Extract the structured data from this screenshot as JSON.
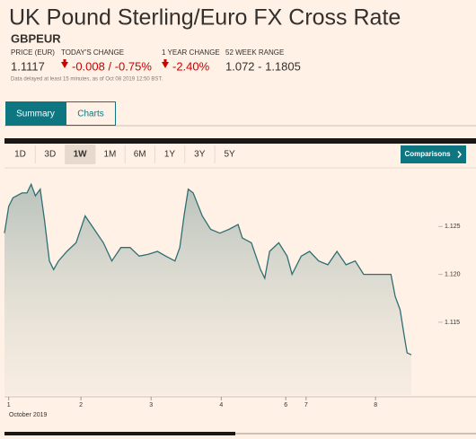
{
  "header": {
    "title": "UK Pound Sterling/Euro FX Cross Rate",
    "symbol": "GBPEUR"
  },
  "quote": {
    "labels": [
      "PRICE (EUR)",
      "TODAY'S CHANGE",
      "1 YEAR CHANGE",
      "52 WEEK RANGE"
    ],
    "values": [
      "1.1117",
      "-0.008 / -0.75%",
      "-2.40%",
      "1.072 - 1.1805"
    ],
    "note": "Data delayed at least 15 minutes, as of Oct 08 2019 12:50 BST."
  },
  "tabs": [
    "Summary",
    "Charts"
  ],
  "ranges": [
    "1D",
    "3D",
    "1W",
    "1M",
    "6M",
    "1Y",
    "3Y",
    "5Y"
  ],
  "comparisons": "Comparisons",
  "chart_data": {
    "type": "line",
    "x_label": "October 2019",
    "x": [
      -0.06,
      0,
      0.06,
      0.19,
      0.26,
      0.32,
      0.38,
      0.45,
      0.51,
      0.58,
      0.64,
      0.71,
      0.83,
      0.96,
      1.09,
      1.22,
      1.35,
      1.47,
      1.6,
      1.73,
      1.86,
      1.99,
      2.12,
      2.24,
      2.37,
      2.44,
      2.5,
      2.56,
      2.63,
      2.76,
      2.88,
      3.01,
      3.14,
      3.27,
      3.33,
      3.46,
      3.59,
      3.65,
      3.72,
      3.85,
      3.97,
      4.04,
      4.17,
      4.29,
      4.42,
      4.55,
      4.68,
      4.81,
      4.94,
      5.06,
      5.19,
      5.32,
      5.45,
      5.51,
      5.58,
      5.64,
      5.68,
      5.74
    ],
    "series": [
      {
        "name": "GBPEUR",
        "color": "#2f6f73",
        "values": [
          1.1243,
          1.1271,
          1.128,
          1.1285,
          1.1285,
          1.1294,
          1.1282,
          1.1289,
          1.1257,
          1.1214,
          1.1205,
          1.1214,
          1.1224,
          1.1233,
          1.1261,
          1.1247,
          1.1233,
          1.1214,
          1.1228,
          1.1228,
          1.1219,
          1.1221,
          1.1224,
          1.1219,
          1.1214,
          1.1228,
          1.1261,
          1.1289,
          1.1285,
          1.1261,
          1.1247,
          1.1243,
          1.1247,
          1.1252,
          1.1238,
          1.1233,
          1.1205,
          1.1196,
          1.1224,
          1.1233,
          1.1219,
          1.12,
          1.1219,
          1.1224,
          1.1214,
          1.121,
          1.1224,
          1.121,
          1.1214,
          1.12,
          1.12,
          1.12,
          1.12,
          1.1177,
          1.1163,
          1.1135,
          1.1118,
          1.1116
        ]
      }
    ],
    "xlim": [
      -0.06,
      6.15
    ],
    "xticks": [
      {
        "value": 0,
        "label": "1"
      },
      {
        "value": 1.03,
        "label": "2"
      },
      {
        "value": 2.03,
        "label": "3"
      },
      {
        "value": 3.03,
        "label": "4"
      },
      {
        "value": 3.95,
        "label": "6"
      },
      {
        "value": 4.24,
        "label": "7"
      },
      {
        "value": 5.23,
        "label": "8"
      }
    ],
    "ylim": [
      1.1074,
      1.1299
    ],
    "yticks": [
      1.115,
      {
        "value": 1.12,
        "label": "1.120"
      },
      1.125
    ]
  }
}
